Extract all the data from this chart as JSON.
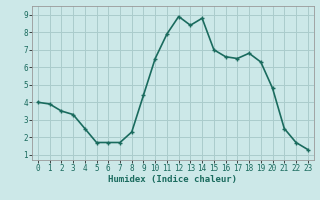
{
  "x": [
    0,
    1,
    2,
    3,
    4,
    5,
    6,
    7,
    8,
    9,
    10,
    11,
    12,
    13,
    14,
    15,
    16,
    17,
    18,
    19,
    20,
    21,
    22,
    23
  ],
  "y": [
    4.0,
    3.9,
    3.5,
    3.3,
    2.5,
    1.7,
    1.7,
    1.7,
    2.3,
    4.4,
    6.5,
    7.9,
    8.9,
    8.4,
    8.8,
    7.0,
    6.6,
    6.5,
    6.8,
    6.3,
    4.8,
    2.5,
    1.7,
    1.3
  ],
  "line_color": "#1a6b5e",
  "marker": "+",
  "marker_size": 3.5,
  "marker_linewidth": 1.0,
  "bg_color": "#cce8e8",
  "grid_color": "#aacccc",
  "xlabel": "Humidex (Indice chaleur)",
  "xlim": [
    -0.5,
    23.5
  ],
  "ylim": [
    0.7,
    9.5
  ],
  "yticks": [
    1,
    2,
    3,
    4,
    5,
    6,
    7,
    8,
    9
  ],
  "xticks": [
    0,
    1,
    2,
    3,
    4,
    5,
    6,
    7,
    8,
    9,
    10,
    11,
    12,
    13,
    14,
    15,
    16,
    17,
    18,
    19,
    20,
    21,
    22,
    23
  ],
  "xlabel_fontsize": 6.5,
  "tick_fontsize": 5.5,
  "linewidth": 1.2
}
